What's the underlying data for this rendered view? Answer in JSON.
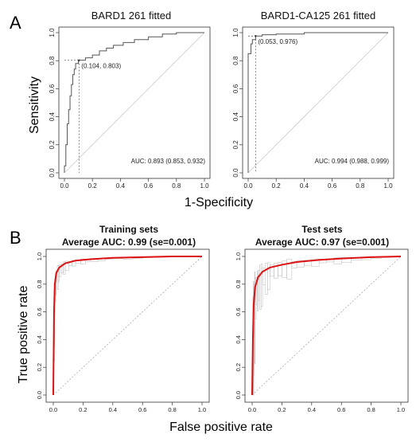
{
  "panels": {
    "A": {
      "letter": "A",
      "ylabel": "Sensitivity",
      "xlabel": "1-Specificity",
      "ticks": [
        "0.0",
        "0.2",
        "0.4",
        "0.6",
        "0.8",
        "1.0"
      ]
    },
    "B": {
      "letter": "B",
      "ylabel": "True positive rate",
      "xlabel": "False positive rate",
      "ticks": [
        "0.0",
        "0.2",
        "0.4",
        "0.6",
        "0.8",
        "1.0"
      ]
    }
  },
  "colors": {
    "roc_gray": "#555555",
    "mean_red": "#dd1111",
    "grid_gray": "#bbbbbb",
    "diag": "#aaaaaa"
  },
  "chart_data": [
    {
      "type": "line",
      "title": "BARD1 261 fitted",
      "xlim": [
        0,
        1
      ],
      "ylim": [
        0,
        1
      ],
      "annotation_point": {
        "x": 0.104,
        "y": 0.803,
        "label": "(0.104, 0.803)"
      },
      "auc_text": "AUC: 0.893 (0.853, 0.932)",
      "series": [
        {
          "points": [
            [
              0,
              0
            ],
            [
              0,
              0.05
            ],
            [
              0.01,
              0.05
            ],
            [
              0.01,
              0.2
            ],
            [
              0.02,
              0.2
            ],
            [
              0.02,
              0.35
            ],
            [
              0.03,
              0.35
            ],
            [
              0.03,
              0.45
            ],
            [
              0.04,
              0.45
            ],
            [
              0.04,
              0.55
            ],
            [
              0.05,
              0.55
            ],
            [
              0.05,
              0.63
            ],
            [
              0.06,
              0.63
            ],
            [
              0.06,
              0.7
            ],
            [
              0.07,
              0.7
            ],
            [
              0.07,
              0.74
            ],
            [
              0.08,
              0.74
            ],
            [
              0.08,
              0.78
            ],
            [
              0.1,
              0.78
            ],
            [
              0.1,
              0.803
            ],
            [
              0.15,
              0.803
            ],
            [
              0.15,
              0.82
            ],
            [
              0.2,
              0.82
            ],
            [
              0.2,
              0.84
            ],
            [
              0.25,
              0.84
            ],
            [
              0.25,
              0.87
            ],
            [
              0.3,
              0.87
            ],
            [
              0.3,
              0.89
            ],
            [
              0.35,
              0.89
            ],
            [
              0.35,
              0.91
            ],
            [
              0.42,
              0.91
            ],
            [
              0.42,
              0.93
            ],
            [
              0.5,
              0.93
            ],
            [
              0.5,
              0.95
            ],
            [
              0.6,
              0.95
            ],
            [
              0.6,
              0.97
            ],
            [
              0.7,
              0.97
            ],
            [
              0.7,
              0.99
            ],
            [
              0.8,
              0.99
            ],
            [
              0.8,
              1.0
            ],
            [
              1.0,
              1.0
            ]
          ]
        }
      ]
    },
    {
      "type": "line",
      "title": "BARD1-CA125 261 fitted",
      "xlim": [
        0,
        1
      ],
      "ylim": [
        0,
        1
      ],
      "annotation_point": {
        "x": 0.053,
        "y": 0.976,
        "label": "(0.053, 0.976)"
      },
      "auc_text": "AUC: 0.994 (0.988, 0.999)",
      "series": [
        {
          "points": [
            [
              0,
              0
            ],
            [
              0,
              0.85
            ],
            [
              0.02,
              0.85
            ],
            [
              0.02,
              0.92
            ],
            [
              0.03,
              0.92
            ],
            [
              0.03,
              0.95
            ],
            [
              0.053,
              0.95
            ],
            [
              0.053,
              0.976
            ],
            [
              0.1,
              0.976
            ],
            [
              0.1,
              0.985
            ],
            [
              0.2,
              0.985
            ],
            [
              0.2,
              0.99
            ],
            [
              0.4,
              0.99
            ],
            [
              0.4,
              1.0
            ],
            [
              1.0,
              1.0
            ]
          ]
        }
      ]
    },
    {
      "type": "line",
      "title": "Training sets",
      "subtitle": "Average AUC: 0.99 (se=0.001)",
      "xlim": [
        0,
        1
      ],
      "ylim": [
        0,
        1
      ],
      "series": [
        {
          "points": [
            [
              0,
              0
            ],
            [
              0.005,
              0.6
            ],
            [
              0.01,
              0.8
            ],
            [
              0.02,
              0.88
            ],
            [
              0.04,
              0.92
            ],
            [
              0.08,
              0.95
            ],
            [
              0.15,
              0.97
            ],
            [
              0.25,
              0.98
            ],
            [
              0.4,
              0.99
            ],
            [
              0.6,
              0.995
            ],
            [
              0.8,
              1.0
            ],
            [
              1.0,
              1.0
            ]
          ]
        }
      ]
    },
    {
      "type": "line",
      "title": "Test sets",
      "subtitle": "Average AUC: 0.97 (se=0.001)",
      "xlim": [
        0,
        1
      ],
      "ylim": [
        0,
        1
      ],
      "series": [
        {
          "points": [
            [
              0,
              0
            ],
            [
              0.005,
              0.4
            ],
            [
              0.01,
              0.65
            ],
            [
              0.02,
              0.78
            ],
            [
              0.04,
              0.85
            ],
            [
              0.07,
              0.89
            ],
            [
              0.12,
              0.92
            ],
            [
              0.2,
              0.94
            ],
            [
              0.3,
              0.96
            ],
            [
              0.45,
              0.975
            ],
            [
              0.6,
              0.985
            ],
            [
              0.8,
              0.995
            ],
            [
              1.0,
              1.0
            ]
          ]
        }
      ]
    }
  ]
}
